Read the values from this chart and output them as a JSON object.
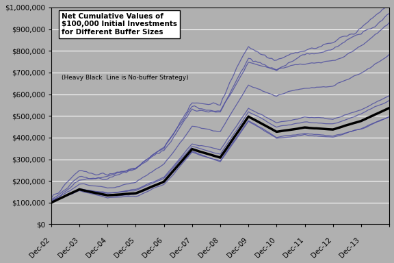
{
  "background_color": "#b0b0b0",
  "plot_bg_color": "#b0b0b0",
  "x_labels": [
    "Dec-02",
    "Dec-03",
    "Dec-04",
    "Dec-05",
    "Dec-06",
    "Dec-07",
    "Dec-08",
    "Dec-09",
    "Dec-10",
    "Dec-11",
    "Dec-12",
    "Dec-13"
  ],
  "ylim": [
    0,
    1000000
  ],
  "yticks": [
    0,
    100000,
    200000,
    300000,
    400000,
    500000,
    600000,
    700000,
    800000,
    900000,
    1000000
  ],
  "purple_color": "#5050a0",
  "black_color": "#000000",
  "n_points": 145,
  "seed": 42,
  "title_bold": "Net Cumulative Values of\n$100,000 Initial Investments\nfor Different Buffer Sizes",
  "title_sub": "(Heavy Black  Line is No-buffer Strategy)"
}
